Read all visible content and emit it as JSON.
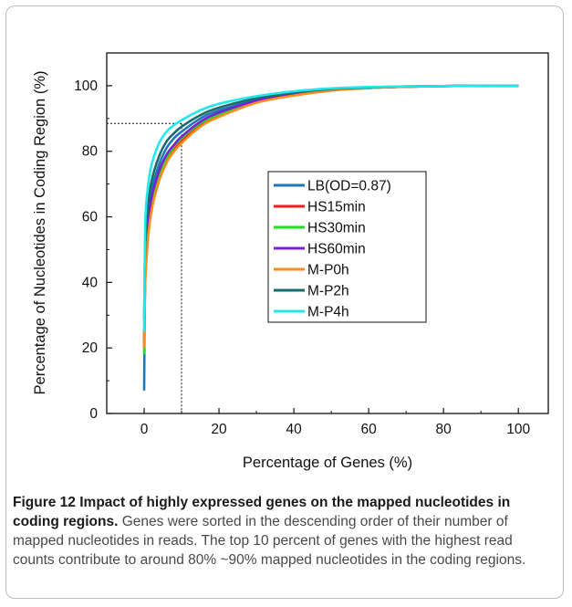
{
  "chart_data": {
    "type": "line",
    "title": "",
    "xlabel": "Percentage of Genes (%)",
    "ylabel": "Percentage of Nucleotides in Coding Region (%)",
    "xlim": [
      -10,
      108
    ],
    "ylim": [
      0,
      110
    ],
    "x_ticks": [
      0,
      20,
      40,
      60,
      80,
      100
    ],
    "y_ticks": [
      0,
      20,
      40,
      60,
      80,
      100
    ],
    "legend_position": "center-right",
    "grid": false,
    "x": [
      0,
      0.3,
      1,
      2,
      4,
      6,
      8,
      10,
      15,
      20,
      30,
      40,
      50,
      60,
      70,
      80,
      90,
      100
    ],
    "series": [
      {
        "name": "LB(OD=0.87)",
        "color": "#1f77b4",
        "values": [
          7,
          45,
          60,
          68,
          76,
          81,
          84,
          86,
          90,
          92.5,
          95.5,
          97.5,
          98.8,
          99.4,
          99.7,
          99.9,
          100,
          100
        ]
      },
      {
        "name": "HS15min",
        "color": "#ff1a1a",
        "values": [
          20,
          42,
          55,
          64,
          72,
          77,
          80.5,
          83,
          88,
          91,
          95,
          97.2,
          98.6,
          99.3,
          99.7,
          99.9,
          100,
          100
        ]
      },
      {
        "name": "HS30min",
        "color": "#22dd22",
        "values": [
          18,
          43,
          56,
          65,
          73,
          78,
          81.5,
          84,
          88.5,
          91.3,
          95.2,
          97.3,
          98.6,
          99.3,
          99.7,
          99.9,
          100,
          100
        ]
      },
      {
        "name": "HS60min",
        "color": "#7a1fd6",
        "values": [
          22,
          44,
          57,
          66,
          74,
          79,
          82,
          84.5,
          89,
          91.8,
          95.4,
          97.5,
          98.7,
          99.4,
          99.7,
          99.9,
          100,
          100
        ]
      },
      {
        "name": "M-P0h",
        "color": "#ff8c1a",
        "values": [
          20,
          40,
          53,
          62,
          71,
          76.5,
          80,
          82.5,
          87.5,
          90.5,
          94.8,
          97,
          98.5,
          99.3,
          99.7,
          99.9,
          100,
          100
        ]
      },
      {
        "name": "M-P2h",
        "color": "#1a6b6b",
        "values": [
          29,
          52,
          63,
          71,
          78.5,
          83,
          85.5,
          87.5,
          91,
          93.3,
          96.2,
          97.9,
          99,
          99.5,
          99.8,
          99.9,
          100,
          100
        ]
      },
      {
        "name": "M-P4h",
        "color": "#22e8ee",
        "values": [
          25,
          58,
          69,
          76,
          82.5,
          86,
          88,
          89.5,
          92.5,
          94.5,
          96.8,
          98.3,
          99.2,
          99.6,
          99.8,
          99.9,
          100,
          100
        ]
      }
    ],
    "reference_lines": {
      "x": 10,
      "y": 88.5
    }
  },
  "caption": {
    "figure_label": "Figure 12",
    "figure_title": "Impact of highly expressed genes on the mapped nucleotides in coding regions.",
    "body": "Genes were sorted in the descending order of their number of mapped nucleotides in reads. The top 10 percent of genes with the highest read counts contribute to around 80% ~90% mapped nucleotides in the coding regions."
  }
}
